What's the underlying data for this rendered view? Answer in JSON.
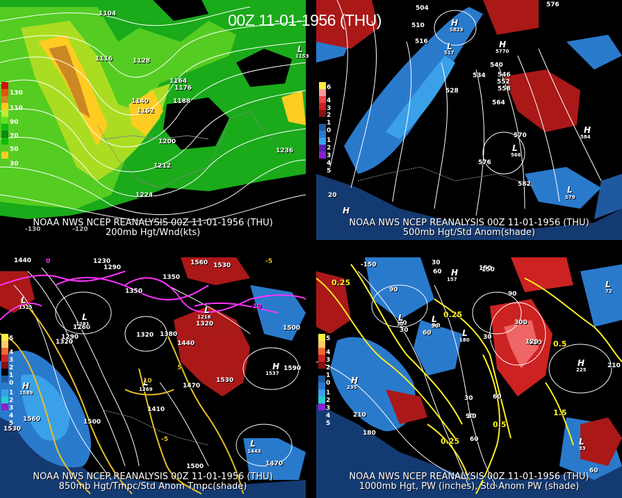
{
  "title": "00Z 11-01-1956 (THU)",
  "panels": [
    {
      "id": "tl",
      "caption1": "NOAA NWS NCEP REANALYSIS 00Z 11-01-1956 (THU)",
      "caption2": "200mb Hgt/Wnd(kts)",
      "legend": [
        "130",
        "110",
        "90",
        "70",
        "50",
        "30"
      ],
      "labels": [
        "1104",
        "1116",
        "1128",
        "1140",
        "1152",
        "1164",
        "1176",
        "1188",
        "1200",
        "1212",
        "1224",
        "1236",
        "L",
        "1153",
        "-130",
        "-120"
      ]
    },
    {
      "id": "tr",
      "caption1": "NOAA NWS NCEP REANALYSIS 00Z 11-01-1956 (THU)",
      "caption2": "500mb Hgt/Std Anom(shade)",
      "legend": [
        "6",
        "4",
        "3",
        "2",
        "1",
        "0",
        "1",
        "2",
        "3",
        "4",
        "5"
      ],
      "labels": [
        "504",
        "510",
        "516",
        "528",
        "534",
        "540",
        "546",
        "552",
        "558",
        "564",
        "570",
        "576",
        "576",
        "582",
        "H",
        "584",
        "L",
        "566",
        "L",
        "579",
        "H",
        "20",
        "L",
        "517",
        "H",
        "5823",
        "H",
        "5770"
      ]
    },
    {
      "id": "bl",
      "caption1": "NOAA NWS NCEP REANALYSIS 00Z 11-01-1956 (THU)",
      "caption2": "850mb Hgt/Tmpc/Std Anom Tmpc(shade)",
      "legend": [
        "5",
        "4",
        "3",
        "2",
        "1",
        "0",
        "1",
        "2",
        "3",
        "4",
        "5"
      ],
      "labels": [
        "1440",
        "1230",
        "1290",
        "1260",
        "1290",
        "1320",
        "1320",
        "1350",
        "1350",
        "1380",
        "1410",
        "1440",
        "1470",
        "1500",
        "1530",
        "1560",
        "1590",
        "1530",
        "1560",
        "1500",
        "1530",
        "1470",
        "1500",
        "H",
        "1589",
        "H",
        "1537",
        "L",
        "1443",
        "L",
        "1216",
        "L",
        "1269",
        "L",
        "1325",
        "L",
        "1281",
        "-10",
        "10",
        "5",
        "-5",
        "0",
        "-5",
        "1320"
      ]
    },
    {
      "id": "br",
      "caption1": "NOAA NWS NCEP REANALYSIS 00Z 11-01-1956 (THU)",
      "caption2": "1000mb Hgt, PW (inches), Std Anom PW (shade)",
      "legend": [
        "5",
        "4",
        "3",
        "2",
        "1",
        "0",
        "1",
        "2",
        "3",
        "4",
        "5"
      ],
      "labels": [
        "0.25",
        "0.25",
        "0.5",
        "1.5",
        "0.5",
        "0.25",
        "90",
        "60",
        "30",
        "60",
        "90",
        "120",
        "150",
        "30",
        "90",
        "30",
        "60",
        "90",
        "30",
        "210",
        "180",
        "120",
        "210",
        "150",
        "60",
        "30",
        "30",
        "H",
        "225",
        "H",
        "235",
        "L",
        "33",
        "L",
        "72",
        "L",
        "30",
        "L",
        "90",
        "L",
        "180",
        "H",
        "157",
        "60",
        "300",
        "-150"
      ]
    }
  ],
  "colors": {
    "jet1": "#11bb11",
    "jet2": "#66dd22",
    "jet3": "#bbee33",
    "jet4": "#ffcc22",
    "jet5": "#cc8822",
    "anomPos": "#b01818",
    "anomNeg": "#2a7acc",
    "ocean": "#143a72",
    "bg": "#000000",
    "contour": "#ffffff",
    "temp": "#ff33ff",
    "pw": "#ffee22"
  }
}
